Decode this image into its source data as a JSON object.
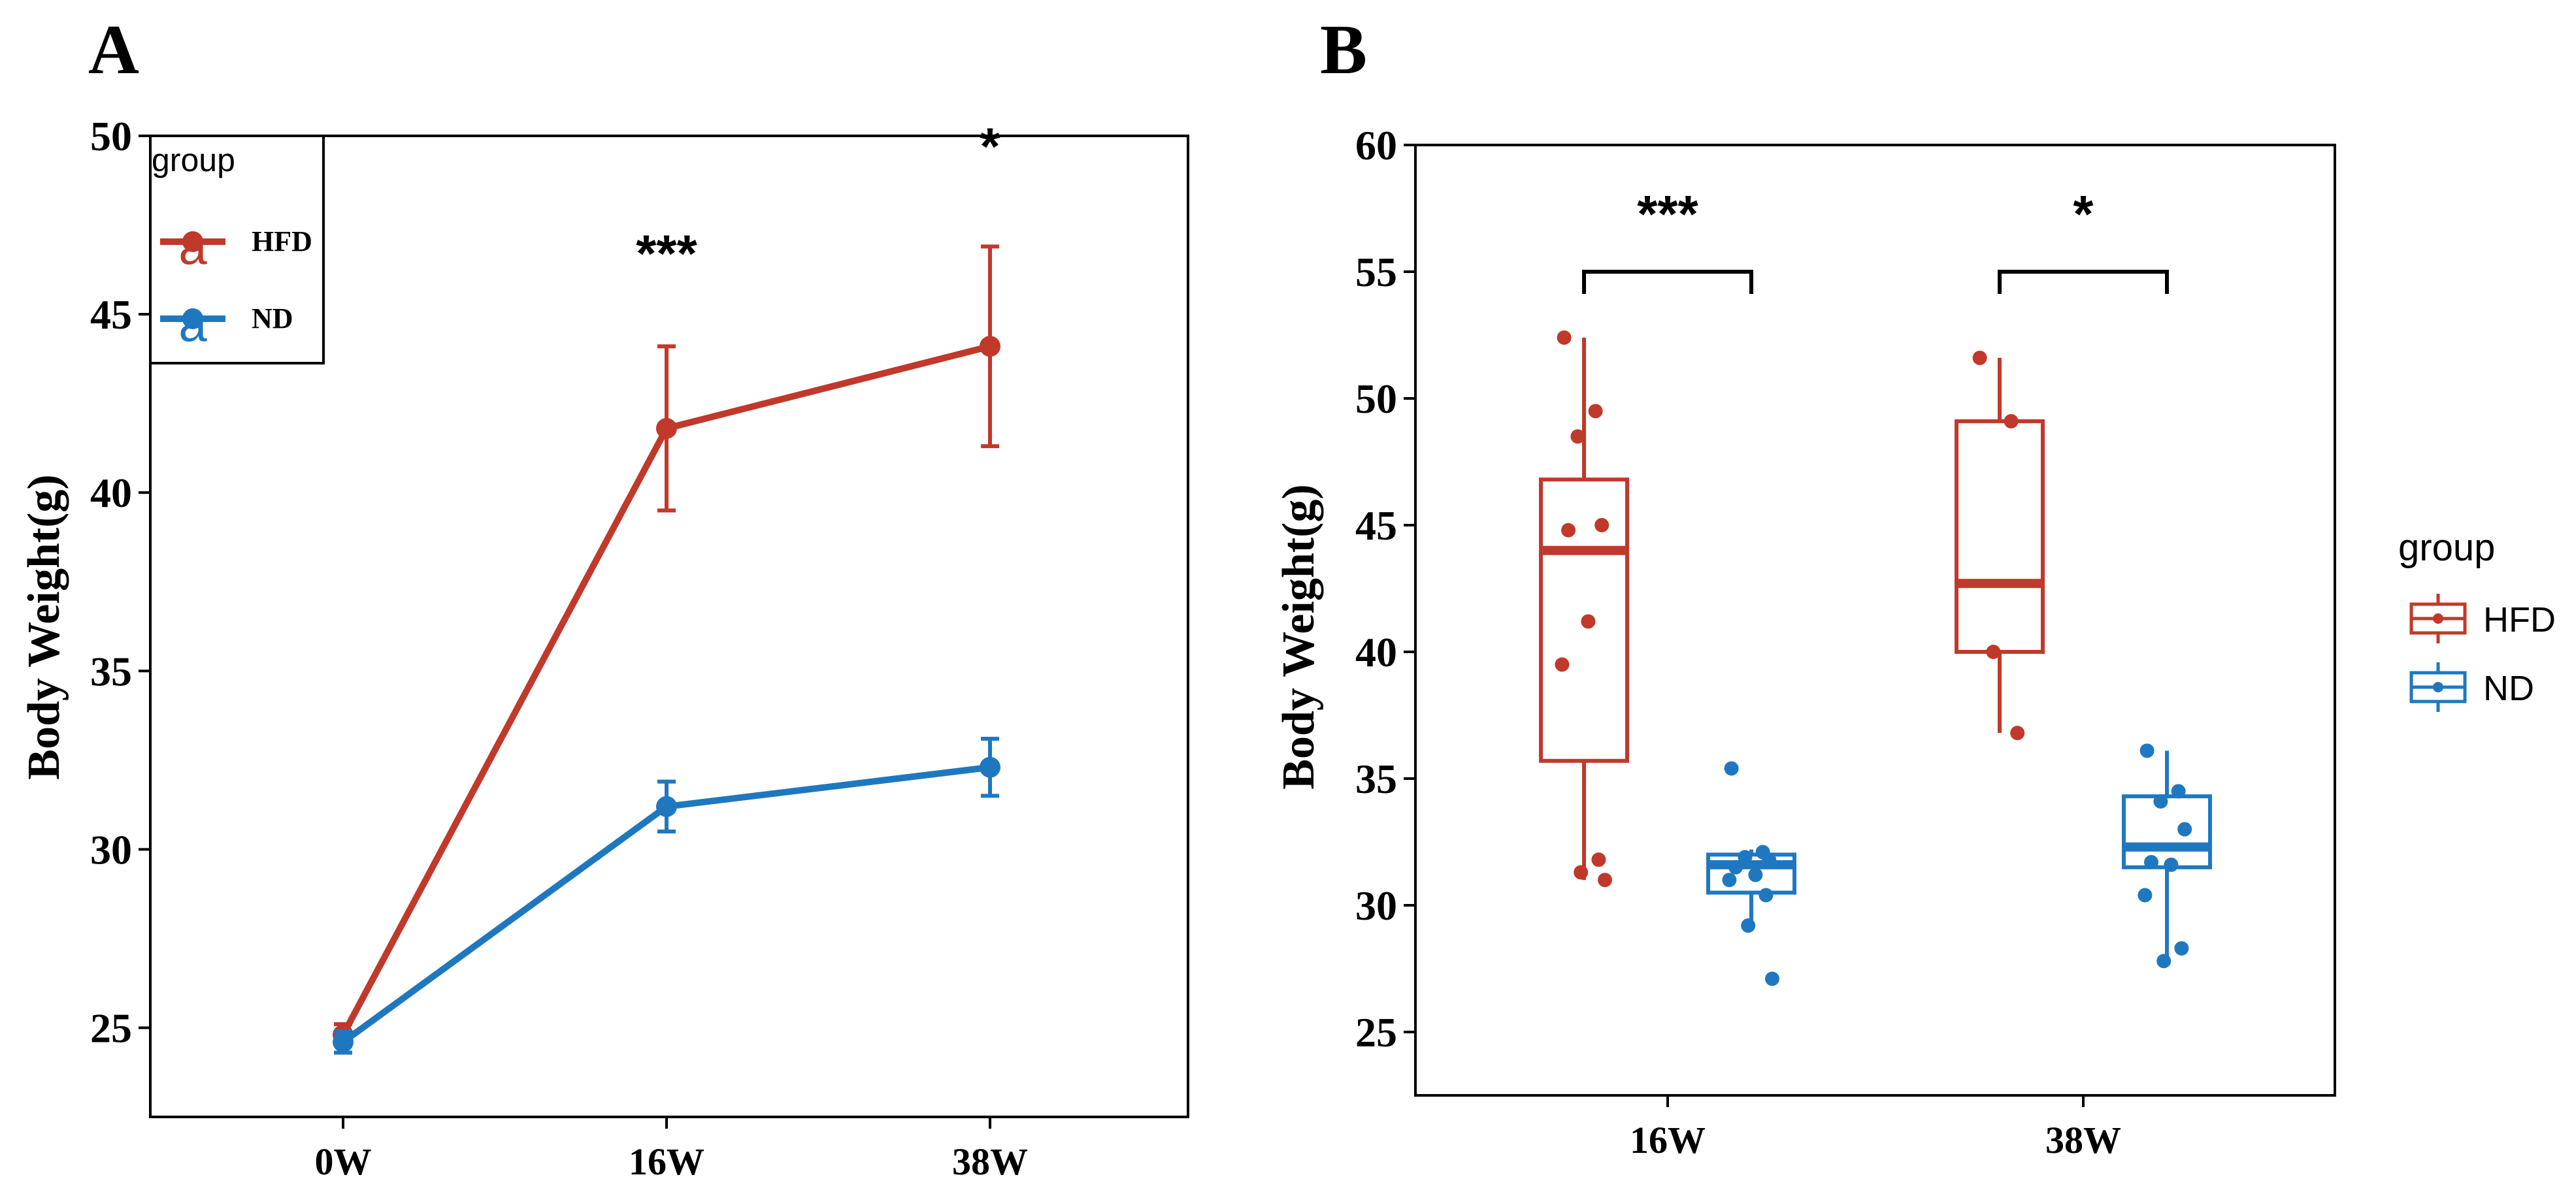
{
  "colors": {
    "hfd": "#C0392B",
    "nd": "#1F78BF",
    "axis": "#000000"
  },
  "chart_data": [
    {
      "type": "line",
      "panel_label": "A",
      "xlabel": "",
      "ylabel": "Body Weight(g)",
      "categories": [
        "0W",
        "16W",
        "38W"
      ],
      "ylim": [
        22.5,
        50
      ],
      "yticks": [
        25,
        30,
        35,
        40,
        45,
        50
      ],
      "legend": {
        "title": "group",
        "position": "top-left",
        "glyph": "a"
      },
      "series": [
        {
          "name": "HFD",
          "color": "#C0392B",
          "values": [
            24.8,
            41.8,
            44.1
          ],
          "err": [
            0.3,
            2.3,
            2.8
          ]
        },
        {
          "name": "ND",
          "color": "#1F78BF",
          "values": [
            24.6,
            31.2,
            32.3
          ],
          "err": [
            0.3,
            0.7,
            0.8
          ]
        }
      ],
      "annotations": [
        {
          "category": "16W",
          "text": "***",
          "y": 46.2
        },
        {
          "category": "38W",
          "text": "*",
          "y": 49.2
        }
      ]
    },
    {
      "type": "box",
      "panel_label": "B",
      "xlabel": "",
      "ylabel": "Body Weight(g)",
      "categories": [
        "16W",
        "38W"
      ],
      "ylim": [
        22.5,
        60
      ],
      "yticks": [
        25,
        30,
        35,
        40,
        45,
        50,
        55,
        60
      ],
      "legend": {
        "title": "group",
        "position": "right"
      },
      "series": [
        {
          "name": "HFD",
          "color": "#C0392B",
          "boxes": [
            {
              "category": "16W",
              "min": 31.0,
              "q1": 35.7,
              "median": 44.0,
              "q3": 46.8,
              "max": 52.4,
              "points": [
                52.4,
                49.5,
                48.5,
                45.0,
                44.8,
                41.2,
                39.5,
                31.8,
                31.3,
                31.0
              ]
            },
            {
              "category": "38W",
              "min": 36.8,
              "q1": 40.0,
              "median": 42.7,
              "q3": 49.1,
              "max": 51.6,
              "points": [
                51.6,
                49.1,
                40.0,
                36.8
              ]
            }
          ]
        },
        {
          "name": "ND",
          "color": "#1F78BF",
          "boxes": [
            {
              "category": "16W",
              "min": 29.3,
              "q1": 30.5,
              "median": 31.6,
              "q3": 32.0,
              "max": 32.2,
              "points": [
                35.4,
                32.1,
                31.9,
                31.8,
                31.5,
                31.2,
                31.0,
                30.4,
                29.2,
                27.1
              ]
            },
            {
              "category": "38W",
              "min": 27.8,
              "q1": 31.5,
              "median": 32.3,
              "q3": 34.3,
              "max": 36.1,
              "points": [
                36.1,
                34.5,
                34.1,
                33.0,
                31.7,
                31.6,
                30.4,
                28.3,
                27.8
              ]
            }
          ]
        }
      ],
      "annotations": [
        {
          "category": "16W",
          "text": "***",
          "bracket_y": 55.0,
          "text_y": 57.3
        },
        {
          "category": "38W",
          "text": "*",
          "bracket_y": 55.0,
          "text_y": 57.3
        }
      ]
    }
  ]
}
